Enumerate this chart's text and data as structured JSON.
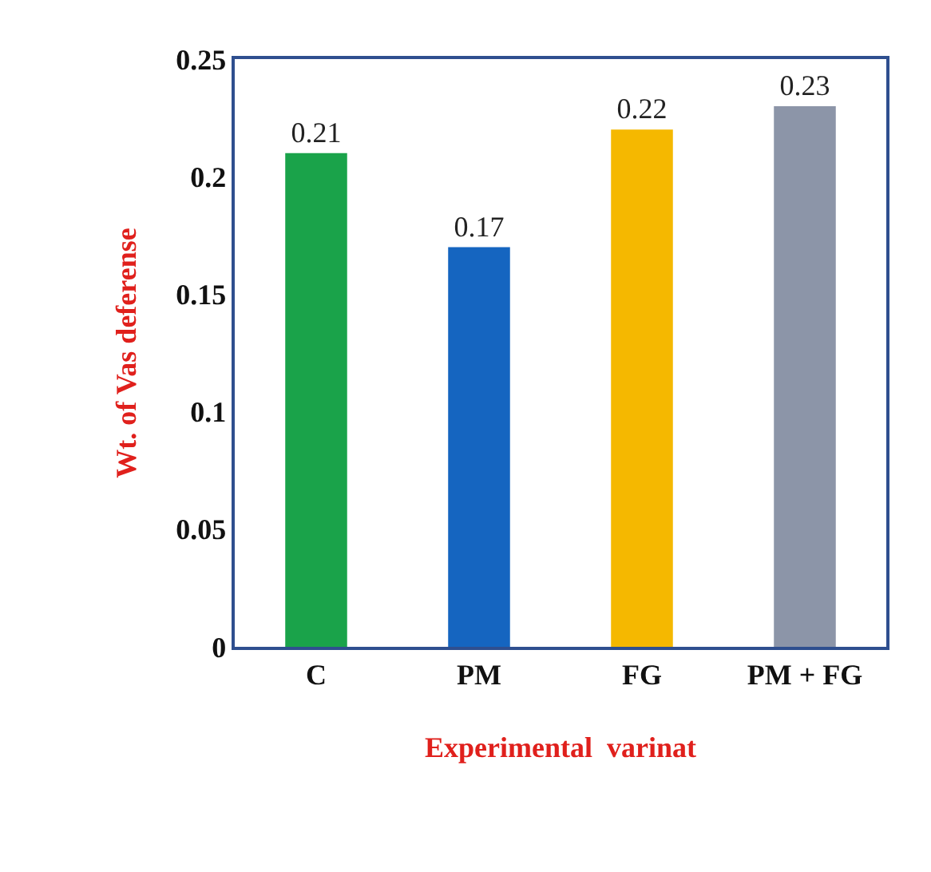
{
  "chart_data": {
    "type": "bar",
    "xlabel": "Experimental  varinat",
    "ylabel": "Wt. of Vas deferense",
    "categories": [
      "C",
      "PM",
      "FG",
      "PM + FG"
    ],
    "values": [
      0.21,
      0.17,
      0.22,
      0.23
    ],
    "colors": [
      "#1aa34a",
      "#1565c0",
      "#f5b800",
      "#8c95a8"
    ],
    "ylim": [
      0,
      0.25
    ],
    "yticks": [
      0,
      0.05,
      0.1,
      0.15,
      0.2,
      0.25
    ],
    "data_labels": true,
    "grid": false
  }
}
